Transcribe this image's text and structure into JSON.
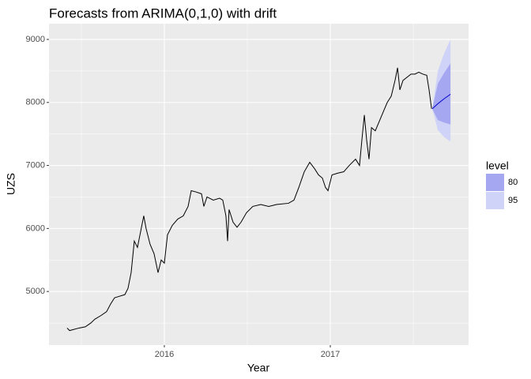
{
  "chart_data": {
    "type": "line",
    "title": "Forecasts from ARIMA(0,1,0) with drift",
    "x_label": "Year",
    "y_label": "UZS",
    "x": [
      2015.414,
      2015.429,
      2015.486,
      2015.524,
      2015.557,
      2015.581,
      2015.619,
      2015.652,
      2015.676,
      2015.7,
      2015.724,
      2015.762,
      2015.781,
      2015.8,
      2015.819,
      2015.838,
      2015.857,
      2015.876,
      2015.89,
      2015.914,
      2015.938,
      2015.962,
      2015.981,
      2016.0,
      2016.019,
      2016.048,
      2016.081,
      2016.114,
      2016.143,
      2016.162,
      2016.19,
      2016.224,
      2016.238,
      2016.257,
      2016.295,
      2016.333,
      2016.352,
      2016.371,
      2016.381,
      2016.39,
      2016.414,
      2016.438,
      2016.462,
      2016.495,
      2016.533,
      2016.581,
      2016.629,
      2016.676,
      2016.748,
      2016.781,
      2016.81,
      2016.843,
      2016.876,
      2016.905,
      2016.929,
      2016.952,
      2016.971,
      2016.986,
      2017.01,
      2017.048,
      2017.081,
      2017.114,
      2017.152,
      2017.176,
      2017.19,
      2017.205,
      2017.219,
      2017.233,
      2017.248,
      2017.271,
      2017.295,
      2017.319,
      2017.343,
      2017.367,
      2017.39,
      2017.405,
      2017.419,
      2017.438,
      2017.462,
      2017.486,
      2017.51,
      2017.533,
      2017.557,
      2017.581,
      2017.595,
      2017.61
    ],
    "values": [
      4420,
      4380,
      4420,
      4440,
      4500,
      4560,
      4620,
      4680,
      4800,
      4900,
      4920,
      4950,
      5050,
      5300,
      5800,
      5700,
      5950,
      6200,
      6000,
      5750,
      5600,
      5300,
      5500,
      5450,
      5900,
      6050,
      6150,
      6200,
      6350,
      6600,
      6580,
      6550,
      6350,
      6500,
      6450,
      6480,
      6450,
      6200,
      5800,
      6300,
      6100,
      6020,
      6100,
      6250,
      6350,
      6380,
      6350,
      6380,
      6400,
      6450,
      6650,
      6900,
      7050,
      6950,
      6850,
      6800,
      6650,
      6600,
      6850,
      6880,
      6900,
      7000,
      7100,
      7000,
      7400,
      7800,
      7400,
      7100,
      7600,
      7550,
      7700,
      7850,
      8000,
      8100,
      8350,
      8550,
      8200,
      8350,
      8400,
      8450,
      8450,
      8480,
      8450,
      8430,
      8200,
      7900
    ],
    "color": "#000000",
    "forecast_x": [
      2017.614,
      2017.648,
      2017.686,
      2017.724
    ],
    "forecast_mean": [
      7900,
      7980,
      8060,
      8130
    ],
    "forecast_color": "#0000cc",
    "legend_title": "level",
    "bands": [
      {
        "name": "80",
        "color": "#a5a8f0",
        "lower": [
          7900,
          7720,
          7680,
          7650
        ],
        "upper": [
          7900,
          8300,
          8470,
          8620
        ]
      },
      {
        "name": "95",
        "color": "#d0d3f8",
        "lower": [
          7900,
          7560,
          7450,
          7380
        ],
        "upper": [
          7900,
          8500,
          8780,
          9000
        ]
      }
    ],
    "xlim": [
      2015.305,
      2017.833
    ],
    "ylim": [
      4150,
      9250
    ],
    "xticks": [
      2016,
      2017
    ],
    "yticks": [
      5000,
      6000,
      7000,
      8000,
      9000
    ],
    "minor_xticks": [
      2015.5,
      2016.5,
      2017.5
    ],
    "minor_yticks": [
      4500,
      5500,
      6500,
      7500,
      8500
    ],
    "grid": true
  }
}
